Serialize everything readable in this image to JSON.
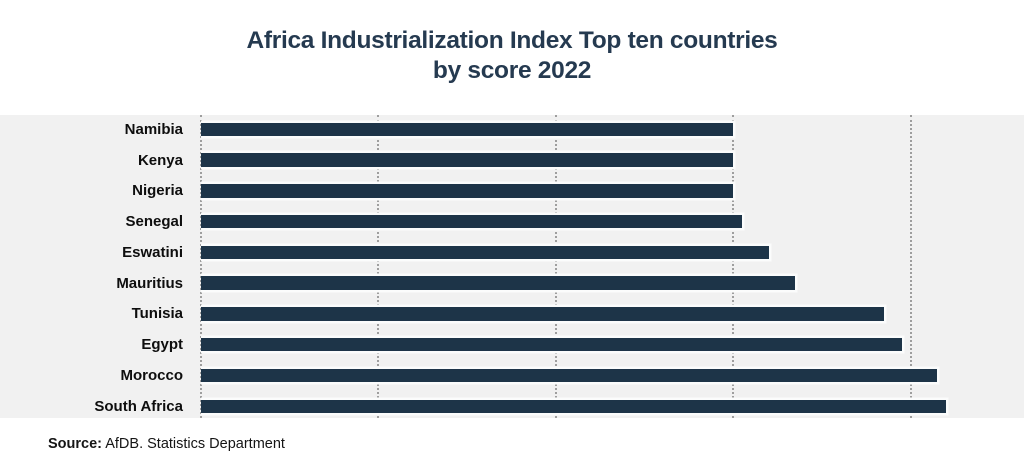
{
  "header": {
    "title_lines": [
      "Africa Industrialization Index Top ten countries",
      "by score 2022"
    ]
  },
  "footer": {
    "source_label": "Source:",
    "source_text": "AfDB. Statistics Department"
  },
  "chart_data": {
    "type": "bar",
    "orientation": "horizontal",
    "title": "Africa Industrialization Index Top ten countries by score 2022",
    "categories": [
      "Namibia",
      "Kenya",
      "Nigeria",
      "Senegal",
      "Eswatini",
      "Mauritius",
      "Tunisia",
      "Egypt",
      "Morocco",
      "South Africa"
    ],
    "values": [
      0.6,
      0.6,
      0.6,
      0.61,
      0.64,
      0.67,
      0.77,
      0.79,
      0.83,
      0.84
    ],
    "xlabel": "",
    "ylabel": "",
    "xlim": [
      0,
      0.93
    ],
    "xticks": [
      0,
      0.2,
      0.4,
      0.6,
      0.8
    ],
    "xtick_labels_shown": false,
    "grid": "vertical-dotted",
    "legend": "none",
    "colors": {
      "bar": "#1d3448",
      "bar_halo": "#fbfcfc",
      "plot_background": "#f1f1f1",
      "page_background": "#ffffff",
      "title_text": "#253a50",
      "label_text": "#0e0e0e",
      "gridline": "#9e9e9e",
      "source_text": "#151515"
    }
  }
}
